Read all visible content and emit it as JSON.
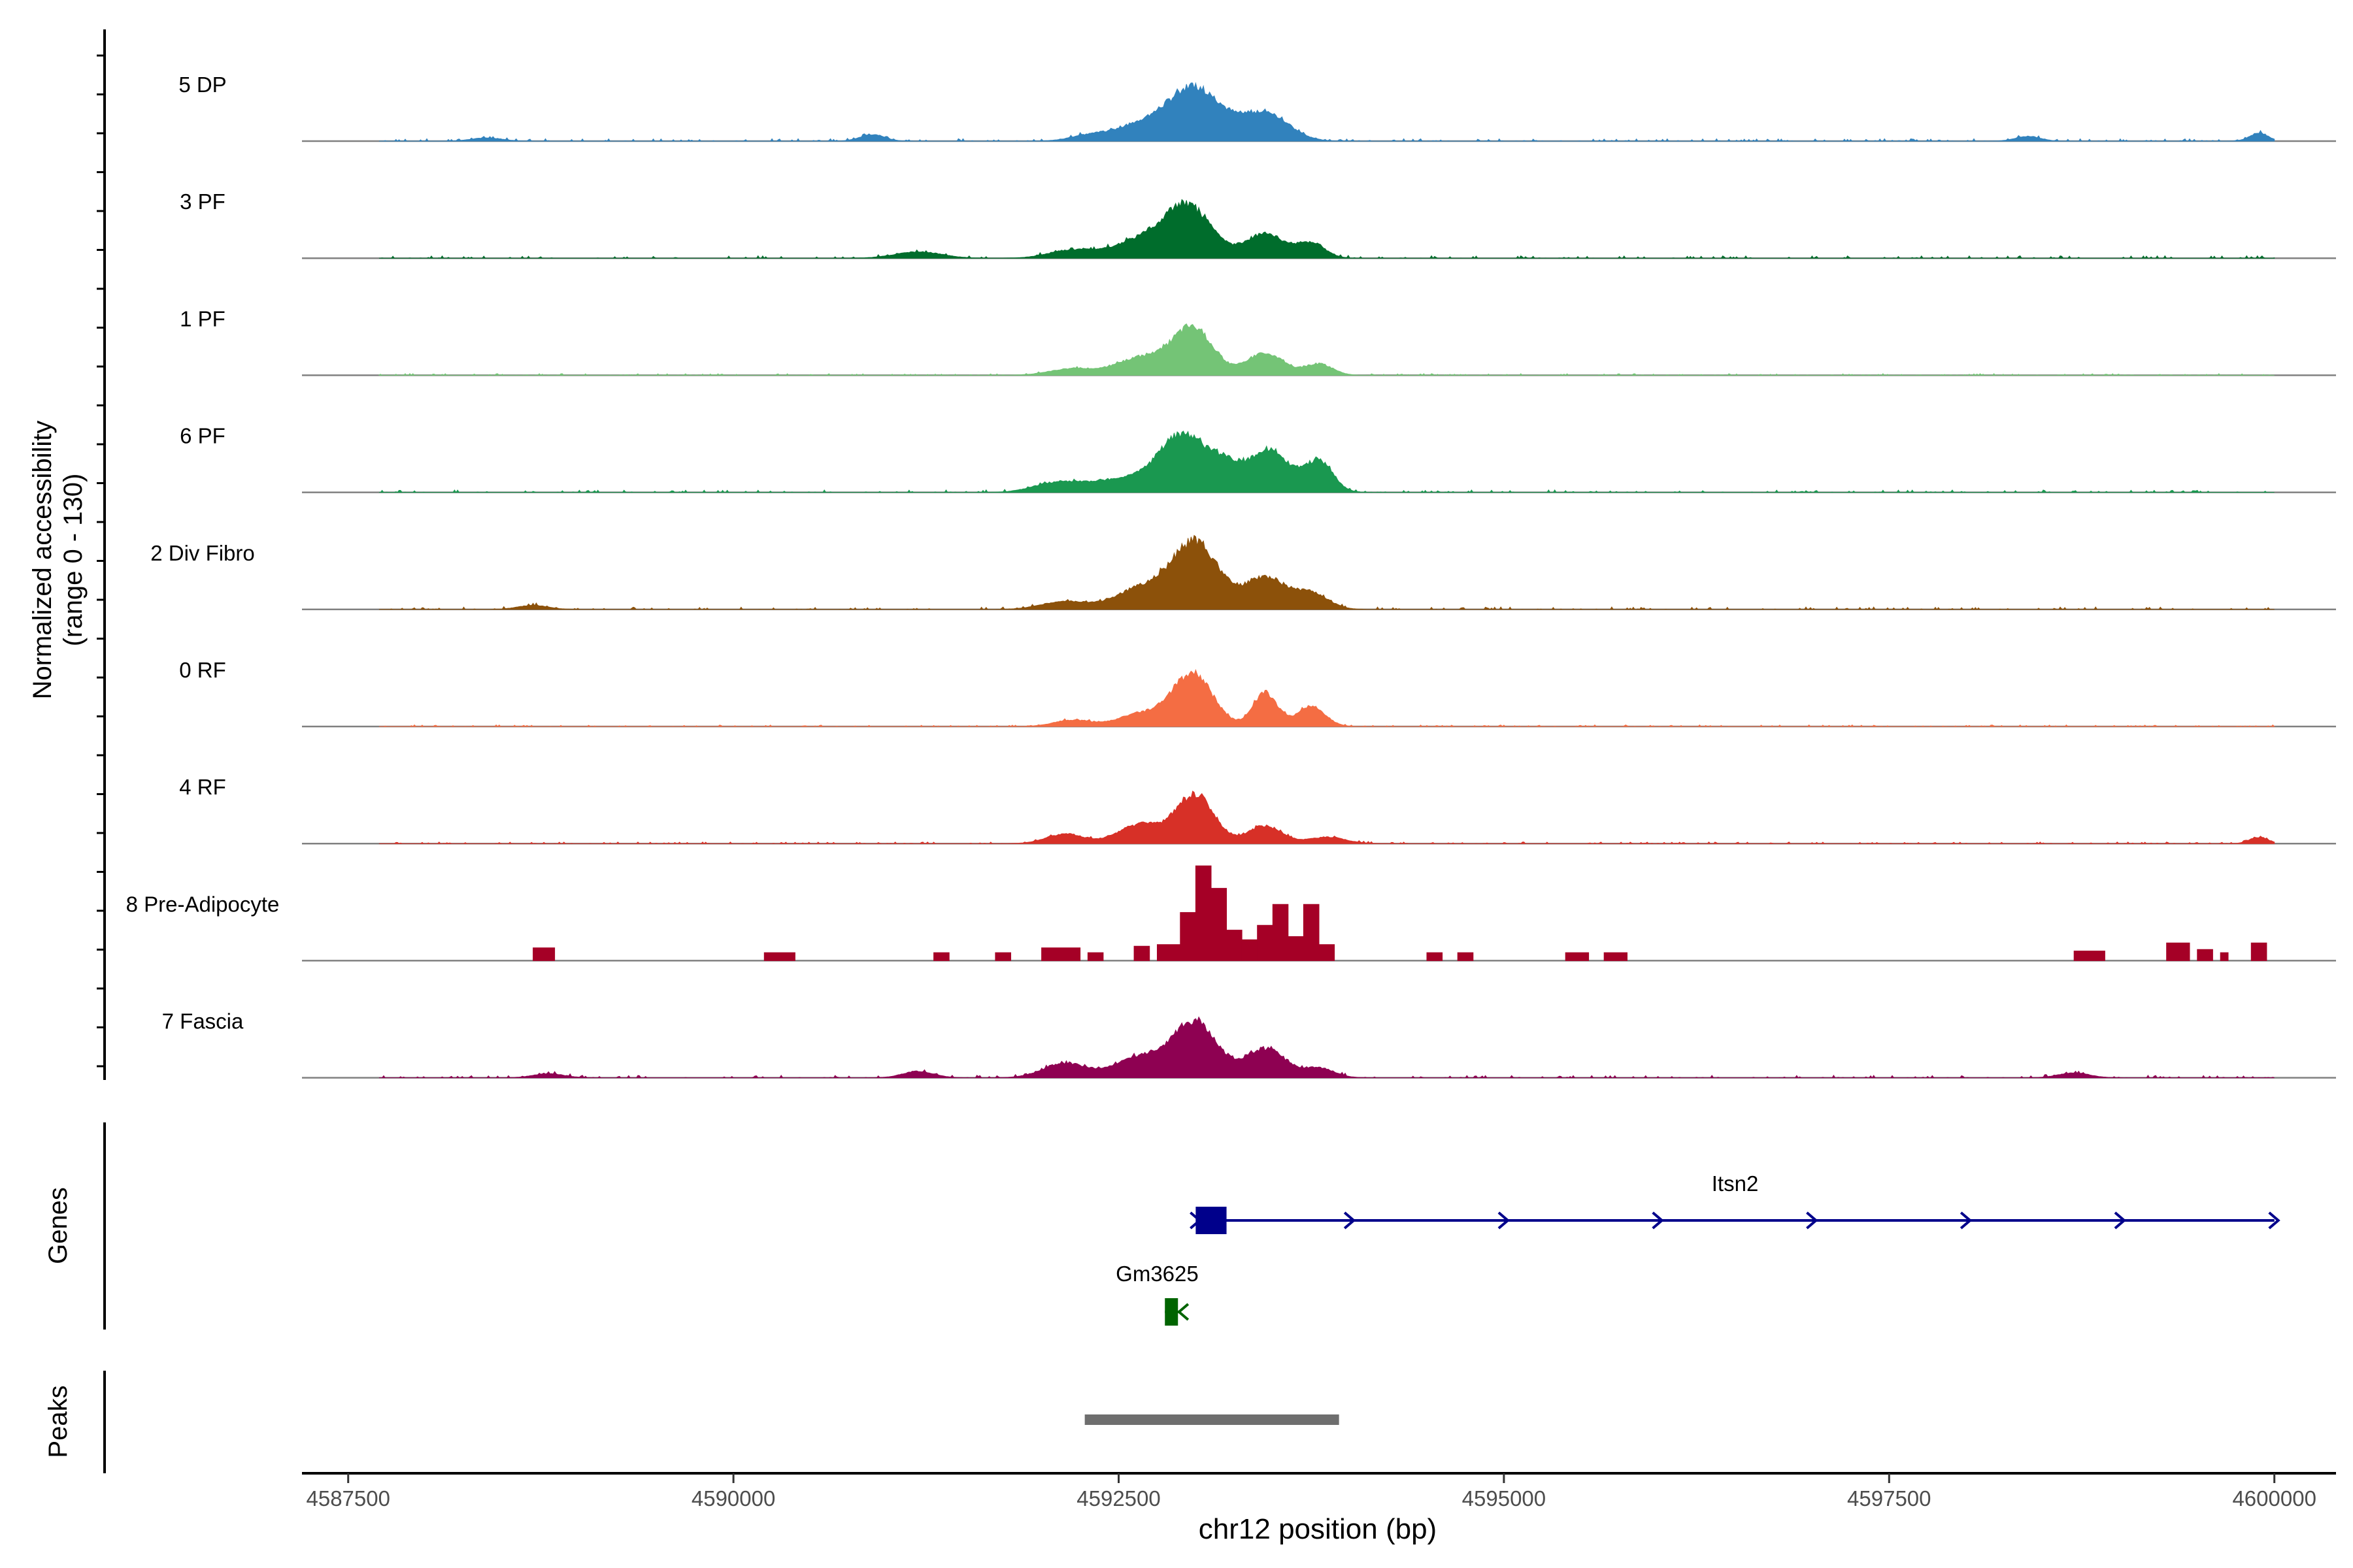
{
  "chart_data": {
    "type": "area",
    "ylabel_line1": "Normalized accessibility",
    "ylabel_line2": "(range 0 - 130)",
    "xlabel": "chr12 position (bp)",
    "xlim": [
      4587200,
      4600400
    ],
    "ylim": [
      0,
      130
    ],
    "x_ticks": [
      4587500,
      4590000,
      4592500,
      4595000,
      4597500,
      4600000
    ],
    "x_tick_labels": [
      "4587500",
      "4590000",
      "4592500",
      "4595000",
      "4597500",
      "4600000"
    ],
    "track_range": [
      4587700,
      4600000
    ],
    "series": [
      {
        "name": "5 DP",
        "color": "#3182bd",
        "peaks": [
          [
            4593000,
            65,
            170
          ],
          [
            4593450,
            35,
            150
          ],
          [
            4592650,
            20,
            180
          ],
          [
            4592300,
            6,
            120
          ],
          [
            4590900,
            8,
            80
          ],
          [
            4599900,
            10,
            60
          ],
          [
            4598400,
            6,
            80
          ],
          [
            4588400,
            4,
            100
          ]
        ],
        "noise": 3
      },
      {
        "name": "3 PF",
        "color": "#006d2c",
        "peaks": [
          [
            4592950,
            62,
            150
          ],
          [
            4593450,
            30,
            130
          ],
          [
            4593750,
            18,
            90
          ],
          [
            4592650,
            22,
            180
          ],
          [
            4592200,
            10,
            150
          ],
          [
            4591200,
            8,
            150
          ]
        ],
        "noise": 3
      },
      {
        "name": "1 PF",
        "color": "#74c476",
        "peaks": [
          [
            4592980,
            58,
            130
          ],
          [
            4593450,
            28,
            120
          ],
          [
            4593800,
            14,
            90
          ],
          [
            4592650,
            22,
            160
          ],
          [
            4592200,
            8,
            150
          ]
        ],
        "noise": 2
      },
      {
        "name": "6 PF",
        "color": "#1a9850",
        "peaks": [
          [
            4592900,
            68,
            150
          ],
          [
            4593500,
            48,
            120
          ],
          [
            4593800,
            38,
            90
          ],
          [
            4593200,
            34,
            140
          ],
          [
            4592500,
            16,
            180
          ],
          [
            4592100,
            12,
            150
          ]
        ],
        "noise": 3
      },
      {
        "name": "2 Div Fibro",
        "color": "#8c510a",
        "peaks": [
          [
            4593000,
            82,
            150
          ],
          [
            4593450,
            40,
            130
          ],
          [
            4593750,
            20,
            110
          ],
          [
            4592650,
            26,
            170
          ],
          [
            4592150,
            10,
            150
          ],
          [
            4588700,
            5,
            100
          ]
        ],
        "noise": 3
      },
      {
        "name": "0 RF",
        "color": "#f46d43",
        "peaks": [
          [
            4592980,
            65,
            130
          ],
          [
            4593450,
            42,
            80
          ],
          [
            4593750,
            25,
            90
          ],
          [
            4592650,
            16,
            150
          ],
          [
            4592200,
            8,
            120
          ]
        ],
        "noise": 2
      },
      {
        "name": "4 RF",
        "color": "#d73027",
        "peaks": [
          [
            4593000,
            60,
            120
          ],
          [
            4593450,
            22,
            110
          ],
          [
            4592650,
            24,
            150
          ],
          [
            4592150,
            12,
            120
          ],
          [
            4593850,
            8,
            120
          ],
          [
            4599900,
            8,
            60
          ]
        ],
        "noise": 2
      },
      {
        "name": "8 Pre-Adipocyte",
        "color": "#a50026",
        "blocks": [
          [
            4588700,
            4588840,
            16
          ],
          [
            4590200,
            4590400,
            10
          ],
          [
            4591300,
            4591400,
            10
          ],
          [
            4591700,
            4591800,
            10
          ],
          [
            4592000,
            4592250,
            16
          ],
          [
            4592300,
            4592400,
            10
          ],
          [
            4592600,
            4592700,
            18
          ],
          [
            4592750,
            4592900,
            20
          ],
          [
            4592900,
            4593000,
            60
          ],
          [
            4593000,
            4593100,
            118
          ],
          [
            4593100,
            4593200,
            90
          ],
          [
            4593200,
            4593300,
            38
          ],
          [
            4593300,
            4593400,
            26
          ],
          [
            4593400,
            4593500,
            44
          ],
          [
            4593500,
            4593600,
            70
          ],
          [
            4593600,
            4593700,
            30
          ],
          [
            4593700,
            4593800,
            70
          ],
          [
            4593800,
            4593900,
            20
          ],
          [
            4594500,
            4594600,
            10
          ],
          [
            4594700,
            4594800,
            10
          ],
          [
            4595400,
            4595550,
            10
          ],
          [
            4595650,
            4595800,
            10
          ],
          [
            4598700,
            4598900,
            12
          ],
          [
            4599300,
            4599450,
            22
          ],
          [
            4599500,
            4599600,
            14
          ],
          [
            4599650,
            4599700,
            10
          ],
          [
            4599850,
            4599950,
            22
          ]
        ]
      },
      {
        "name": "7 Fascia",
        "color": "#8e0152",
        "peaks": [
          [
            4593000,
            68,
            140
          ],
          [
            4593450,
            36,
            130
          ],
          [
            4592650,
            26,
            170
          ],
          [
            4592150,
            18,
            140
          ],
          [
            4593800,
            12,
            100
          ],
          [
            4591200,
            8,
            100
          ],
          [
            4598700,
            6,
            100
          ],
          [
            4588800,
            5,
            100
          ]
        ],
        "noise": 3
      }
    ],
    "genes": [
      {
        "name": "Itsn2",
        "color": "#00008b",
        "start": 4593000,
        "end": 4600000,
        "strand": "+",
        "exon": [
          4593000,
          4593200
        ]
      },
      {
        "name": "Gm3625",
        "color": "#006400",
        "start": 4592800,
        "end": 4592900,
        "strand": "-",
        "exon": [
          4592800,
          4592880
        ]
      }
    ],
    "peaks": [
      [
        4592280,
        4593930
      ]
    ],
    "track_labels": {
      "genes": "Genes",
      "peaks": "Peaks"
    }
  }
}
